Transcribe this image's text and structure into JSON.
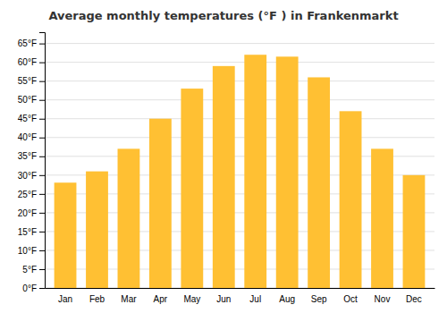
{
  "chart_data": {
    "type": "bar",
    "title": "Average monthly temperatures (°F ) in Frankenmarkt",
    "categories": [
      "Jan",
      "Feb",
      "Mar",
      "Apr",
      "May",
      "Jun",
      "Jul",
      "Aug",
      "Sep",
      "Oct",
      "Nov",
      "Dec"
    ],
    "values": [
      28,
      31,
      37,
      45,
      53,
      59,
      62,
      61.5,
      56,
      47,
      37,
      30
    ],
    "color": "#FFC033",
    "ylim": [
      0,
      68
    ],
    "yticks": [
      {
        "value": 0,
        "label": "0°F"
      },
      {
        "value": 5,
        "label": "5°F"
      },
      {
        "value": 10,
        "label": "10°F"
      },
      {
        "value": 15,
        "label": "15°F"
      },
      {
        "value": 20,
        "label": "20°F"
      },
      {
        "value": 25,
        "label": "25°F"
      },
      {
        "value": 30,
        "label": "30°F"
      },
      {
        "value": 35,
        "label": "35°F"
      },
      {
        "value": 40,
        "label": "40°F"
      },
      {
        "value": 45,
        "label": "45°F"
      },
      {
        "value": 50,
        "label": "50°F"
      },
      {
        "value": 55,
        "label": "55°F"
      },
      {
        "value": 60,
        "label": "60°F"
      },
      {
        "value": 65,
        "label": "65°F"
      }
    ],
    "grid": true
  }
}
